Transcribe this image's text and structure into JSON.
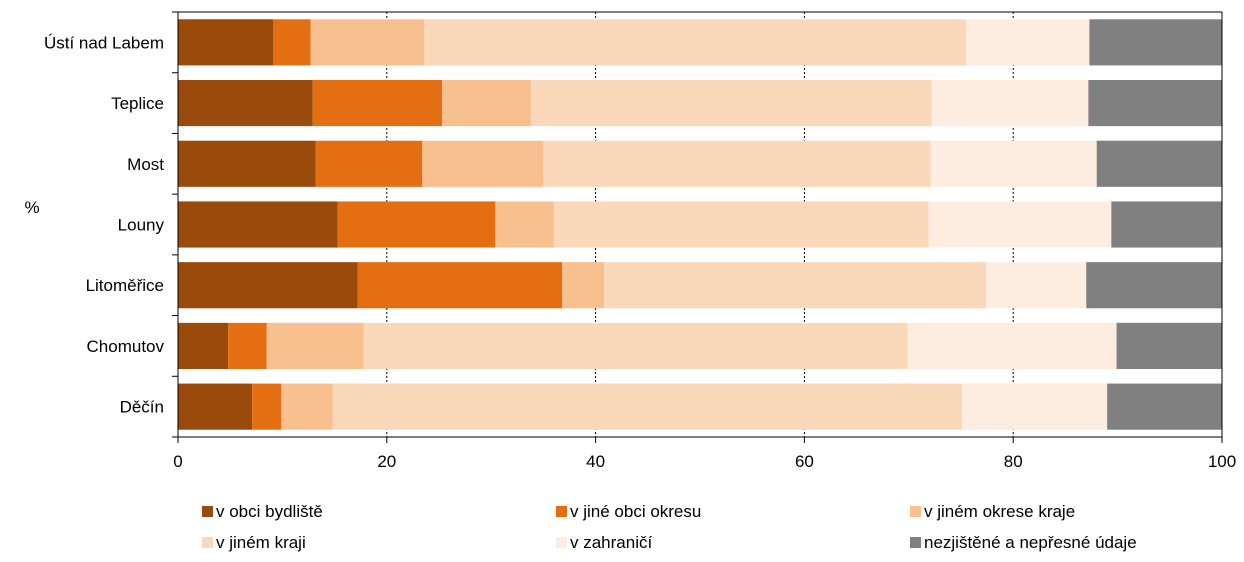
{
  "chart_data": {
    "type": "bar",
    "orientation": "horizontal",
    "stacked": true,
    "ylabel": "%",
    "xlim": [
      0,
      100
    ],
    "xticks": [
      0,
      20,
      40,
      60,
      80,
      100
    ],
    "grid": true,
    "legend_position": "bottom",
    "categories": [
      "Ústí nad Labem",
      "Teplice",
      "Most",
      "Louny",
      "Litoměřice",
      "Chomutov",
      "Děčín"
    ],
    "series": [
      {
        "name": "v obci bydliště",
        "color": "#9a4a0b",
        "values": [
          9.1,
          12.9,
          13.2,
          15.3,
          17.2,
          4.8,
          7.1
        ]
      },
      {
        "name": "v jiné obci okresu",
        "color": "#e46f12",
        "values": [
          3.6,
          12.4,
          10.2,
          15.1,
          19.6,
          3.7,
          2.8
        ]
      },
      {
        "name": "v jiném okrese kraje",
        "color": "#f8bf8f",
        "values": [
          10.9,
          8.5,
          11.6,
          5.6,
          4.0,
          9.3,
          4.9
        ]
      },
      {
        "name": "v jiném kraji",
        "color": "#fbd8b9",
        "values": [
          51.9,
          38.4,
          37.1,
          35.9,
          36.6,
          52.1,
          60.3
        ]
      },
      {
        "name": "v zahraničí",
        "color": "#fdede1",
        "values": [
          11.8,
          15.0,
          15.9,
          17.5,
          9.6,
          20.0,
          13.9
        ]
      },
      {
        "name": "nezjištěné a nepřesné údaje",
        "color": "#808080",
        "values": [
          12.7,
          12.8,
          12.0,
          10.6,
          13.0,
          10.1,
          11.0
        ]
      }
    ]
  }
}
